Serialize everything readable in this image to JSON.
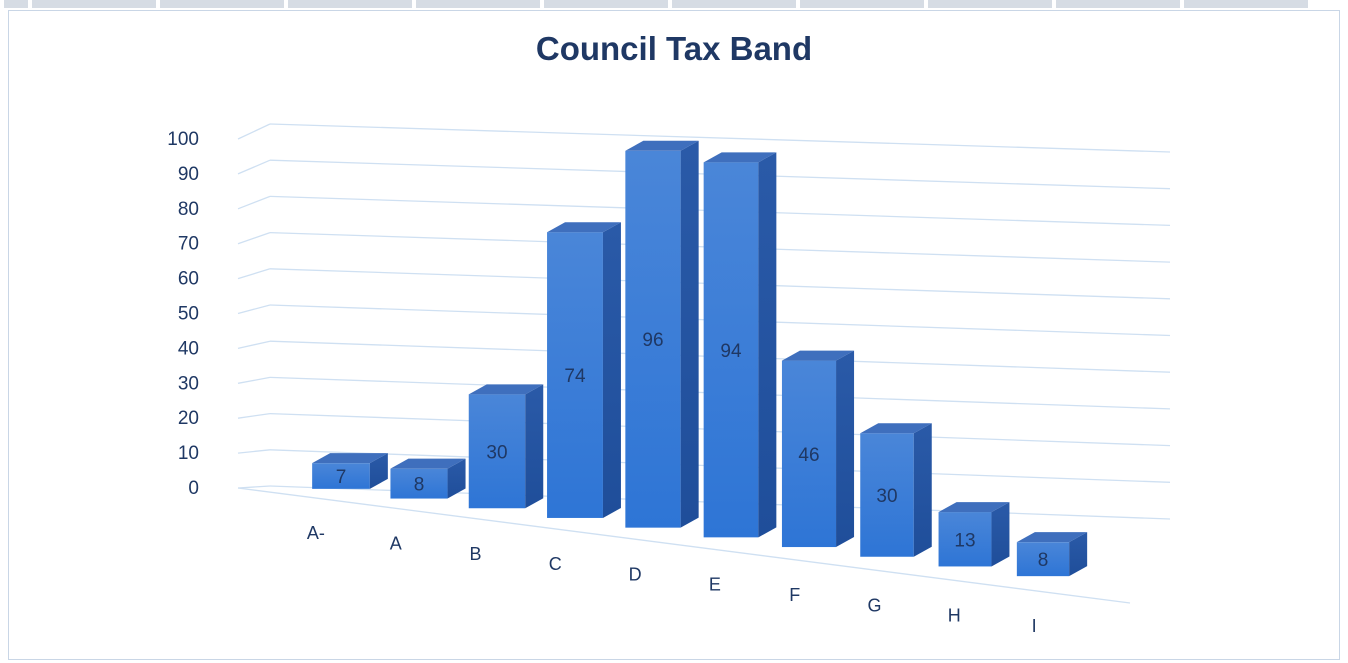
{
  "chart_data": {
    "type": "bar",
    "style": "3d-column",
    "title": "Council Tax Band",
    "xlabel": "",
    "ylabel": "",
    "categories": [
      "A-",
      "A",
      "B",
      "C",
      "D",
      "E",
      "F",
      "G",
      "H",
      "I"
    ],
    "values": [
      7,
      8,
      30,
      74,
      96,
      94,
      46,
      30,
      13,
      8
    ],
    "ylim": [
      0,
      100
    ],
    "yticks": [
      "0",
      "10",
      "20",
      "30",
      "40",
      "50",
      "60",
      "70",
      "80",
      "90",
      "100"
    ],
    "grid": true,
    "data_labels": true,
    "legend": "none",
    "colors": {
      "bar_front": "#2e75d6",
      "bar_top": "#3f6fbd",
      "bar_side": "#1f4e9a",
      "grid": "#cfe0f2",
      "axis_text": "#1f3864",
      "data_label": "#1f3864",
      "title": "#1f3864"
    }
  }
}
